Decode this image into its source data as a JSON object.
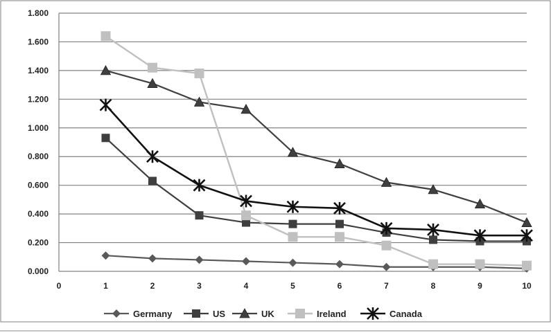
{
  "chart_data": {
    "type": "line",
    "title": "",
    "xlabel": "",
    "ylabel": "",
    "x": [
      1,
      2,
      3,
      4,
      5,
      6,
      7,
      8,
      9,
      10
    ],
    "xlim": [
      0,
      10
    ],
    "ylim": [
      0,
      1.8
    ],
    "x_ticks": [
      "0",
      "1",
      "2",
      "3",
      "4",
      "5",
      "6",
      "7",
      "8",
      "9",
      "10"
    ],
    "y_ticks": [
      "0.000",
      "0.200",
      "0.400",
      "0.600",
      "0.800",
      "1.000",
      "1.200",
      "1.400",
      "1.600",
      "1.800"
    ],
    "y_tick_values": [
      0,
      0.2,
      0.4,
      0.6,
      0.8,
      1.0,
      1.2,
      1.4,
      1.6,
      1.8
    ],
    "grid": "horizontal",
    "legend_position": "bottom",
    "series": [
      {
        "name": "Germany",
        "marker": "diamond",
        "color": "#595959",
        "values": [
          0.11,
          0.09,
          0.08,
          0.07,
          0.06,
          0.05,
          0.03,
          0.03,
          0.03,
          0.02
        ]
      },
      {
        "name": "US",
        "marker": "square",
        "color": "#3f3f3f",
        "values": [
          0.93,
          0.63,
          0.39,
          0.34,
          0.33,
          0.33,
          0.27,
          0.22,
          0.21,
          0.21
        ]
      },
      {
        "name": "UK",
        "marker": "triangle",
        "color": "#404040",
        "values": [
          1.4,
          1.31,
          1.18,
          1.13,
          0.83,
          0.75,
          0.62,
          0.57,
          0.47,
          0.34
        ]
      },
      {
        "name": "Ireland",
        "marker": "square",
        "color": "#c0c0c0",
        "values": [
          1.64,
          1.42,
          1.38,
          0.39,
          0.24,
          0.24,
          0.18,
          0.05,
          0.05,
          0.04
        ]
      },
      {
        "name": "Canada",
        "marker": "star",
        "color": "#111111",
        "values": [
          1.16,
          0.8,
          0.6,
          0.49,
          0.45,
          0.44,
          0.3,
          0.29,
          0.25,
          0.25
        ]
      }
    ]
  }
}
